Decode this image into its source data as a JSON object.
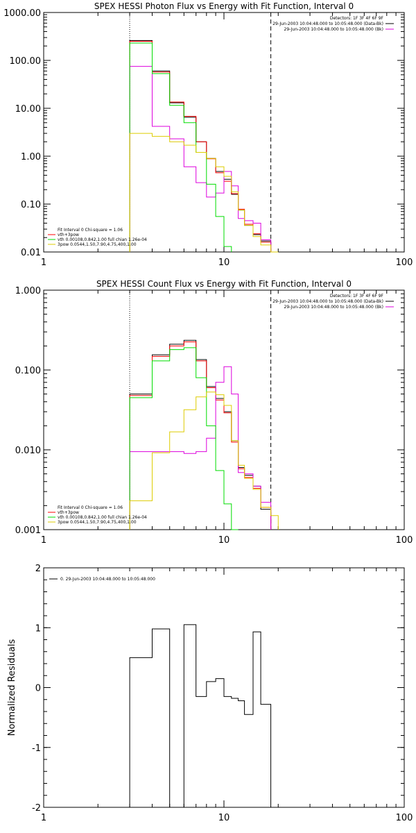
{
  "colors": {
    "black": "#000000",
    "red": "#ff0000",
    "green": "#00dd00",
    "magenta": "#dd00dd",
    "yellow": "#ddcc00",
    "background": "#ffffff"
  },
  "chart_data": [
    {
      "type": "line",
      "title": "SPEX HESSI Photon Flux vs Energy with Fit Function, Interval 0",
      "xscale": "log",
      "yscale": "log",
      "xlim": [
        1,
        100
      ],
      "ylim": [
        0.01,
        1000
      ],
      "xticks": [
        1,
        10,
        100
      ],
      "xtick_labels": [
        "1",
        "10",
        "100"
      ],
      "yticks": [
        0.01,
        0.1,
        1,
        10,
        100,
        1000
      ],
      "ytick_labels": [
        "0.01",
        "0.10",
        "1.00",
        "10.00",
        "100.00",
        "1000.00"
      ],
      "vlines": [
        {
          "x": 3.0,
          "style": "dotted"
        },
        {
          "x": 18.2,
          "style": "dashed"
        }
      ],
      "legend_top": [
        "Detectors: 1F 3F 4F 6F 9F",
        "29-Jun-2003 10:04:48.000 to 10:05:48.000 (Data-Bk)",
        "29-Jun-2003 10:04:48.000 to 10:05:48.000 (Bk)"
      ],
      "legend_bottom": [
        "Fit Interval 0   Chi-square = 1.06",
        "vth+3pow",
        "vth 0.00108,0.842,1.00  full chian 1.26e-04",
        "3pow 0.0544,1.50,7.90,4.75,400,1.00"
      ],
      "bin_edges": [
        3.0,
        4.0,
        5.0,
        6.0,
        7.0,
        8.0,
        9.0,
        10.0,
        11.0,
        12.0,
        13.0,
        14.5,
        16.0,
        18.2,
        20.0
      ],
      "series": [
        {
          "name": "29-Jun-2003 10:04:48.000 to 10:05:48.000 (Data-Bk)",
          "color": "#000000",
          "values": [
            260,
            60,
            13,
            6.5,
            2.0,
            0.9,
            0.48,
            0.33,
            0.16,
            0.075,
            0.036,
            0.023,
            0.017,
            null
          ]
        },
        {
          "name": "vth+3pow",
          "color": "#ff0000",
          "values": [
            250,
            57,
            13.5,
            6.8,
            2.0,
            0.88,
            0.45,
            0.3,
            0.165,
            0.078,
            0.038,
            0.024,
            0.016,
            null
          ]
        },
        {
          "name": "29-Jun-2003 10:04:48.000 to 10:05:48.000 (Bk)",
          "color": "#dd00dd",
          "values": [
            75,
            4.2,
            2.3,
            0.6,
            0.28,
            0.14,
            0.17,
            0.48,
            0.24,
            0.05,
            0.045,
            0.04,
            0.018,
            null
          ]
        },
        {
          "name": "vth 0.00108,0.842,1.00  full chian 1.26e-04",
          "color": "#00dd00",
          "values": [
            230,
            53,
            11.5,
            5.0,
            1.2,
            0.26,
            0.055,
            0.013,
            null,
            null,
            null,
            null,
            null,
            null
          ]
        },
        {
          "name": "3pow 0.0544,1.50,7.90,4.75,400,1.00",
          "color": "#ddcc00",
          "values": [
            3.0,
            2.6,
            2.0,
            1.7,
            1.2,
            0.9,
            0.6,
            0.38,
            0.18,
            0.075,
            0.036,
            0.021,
            0.014,
            0.01
          ]
        }
      ]
    },
    {
      "type": "line",
      "title": "SPEX HESSI Count Flux vs Energy with Fit Function, Interval 0",
      "xscale": "log",
      "yscale": "log",
      "xlim": [
        1,
        100
      ],
      "ylim": [
        0.001,
        1
      ],
      "xticks": [
        1,
        10,
        100
      ],
      "xtick_labels": [
        "1",
        "10",
        "100"
      ],
      "yticks": [
        0.001,
        0.01,
        0.1,
        1
      ],
      "ytick_labels": [
        "0.001",
        "0.010",
        "0.100",
        "1.000"
      ],
      "vlines": [
        {
          "x": 3.0,
          "style": "dotted"
        },
        {
          "x": 18.2,
          "style": "dashed"
        }
      ],
      "legend_top": [
        "Detectors: 1F 3F 4F 6F 9F",
        "29-Jun-2003 10:04:48.000 to 10:05:48.000 (Data-Bk)",
        "29-Jun-2003 10:04:48.000 to 10:05:48.000 (Bk)"
      ],
      "legend_bottom": [
        "Fit Interval 0   Chi-square = 1.06",
        "vth+3pow",
        "vth 0.00108,0.842,1.00  full chian 1.26e-04",
        "3pow 0.0544,1.50,7.90,4.75,400,1.00"
      ],
      "bin_edges": [
        3.0,
        4.0,
        5.0,
        6.0,
        7.0,
        8.0,
        9.0,
        10.0,
        11.0,
        12.0,
        13.0,
        14.5,
        16.0,
        18.2,
        20.0
      ],
      "series": [
        {
          "name": "29-Jun-2003 10:04:48.000 to 10:05:48.000 (Data-Bk)",
          "color": "#000000",
          "values": [
            0.05,
            0.155,
            0.21,
            0.235,
            0.135,
            0.062,
            0.044,
            0.03,
            0.013,
            0.006,
            0.0048,
            0.0035,
            0.0018,
            null
          ]
        },
        {
          "name": "vth+3pow",
          "color": "#ff0000",
          "values": [
            0.048,
            0.148,
            0.2,
            0.225,
            0.13,
            0.06,
            0.042,
            0.029,
            0.0125,
            0.0058,
            0.0045,
            0.0033,
            0.0019,
            null
          ]
        },
        {
          "name": "29-Jun-2003 10:04:48.000 to 10:05:48.000 (Bk)",
          "color": "#dd00dd",
          "values": [
            0.0095,
            0.0095,
            0.0095,
            0.009,
            0.0095,
            0.014,
            0.07,
            0.11,
            0.05,
            0.0052,
            0.005,
            0.0035,
            0.0022,
            null
          ]
        },
        {
          "name": "vth 0.00108,0.842,1.00  full chian 1.26e-04",
          "color": "#00dd00",
          "values": [
            0.045,
            0.13,
            0.18,
            0.19,
            0.08,
            0.02,
            0.0055,
            0.0021,
            0.001,
            null,
            null,
            null,
            null,
            null
          ]
        },
        {
          "name": "3pow 0.0544,1.50,7.90,4.75,400,1.00",
          "color": "#ddcc00",
          "values": [
            0.0023,
            0.0092,
            0.0168,
            0.0318,
            0.046,
            0.053,
            0.049,
            0.036,
            0.013,
            0.0064,
            0.0044,
            0.0032,
            0.0019,
            0.0015
          ]
        }
      ]
    },
    {
      "type": "line",
      "title": "",
      "ylabel": "Normalized Residuals",
      "xscale": "log",
      "yscale": "linear",
      "xlim": [
        1,
        100
      ],
      "ylim": [
        -2,
        2
      ],
      "xticks": [
        1,
        10,
        100
      ],
      "xtick_labels": [
        "1",
        "10",
        "100"
      ],
      "yticks": [
        -2,
        -1,
        0,
        1,
        2
      ],
      "ytick_labels": [
        "-2",
        "-1",
        "0",
        "1",
        "2"
      ],
      "legend_top": [
        "0. 29-Jun-2003 10:04:48.000 to 10:05:48.000"
      ],
      "bin_edges": [
        3.0,
        4.0,
        5.0,
        6.0,
        7.0,
        8.0,
        9.0,
        10.0,
        11.0,
        12.0,
        13.0,
        14.5,
        16.0,
        18.2
      ],
      "series": [
        {
          "name": "0. 29-Jun-2003 10:04:48.000 to 10:05:48.000",
          "color": "#000000",
          "values": [
            0.5,
            0.98,
            -2.0,
            1.05,
            -0.15,
            0.1,
            0.15,
            -0.15,
            -0.18,
            -0.22,
            -0.45,
            0.93,
            -0.28
          ]
        }
      ]
    }
  ]
}
